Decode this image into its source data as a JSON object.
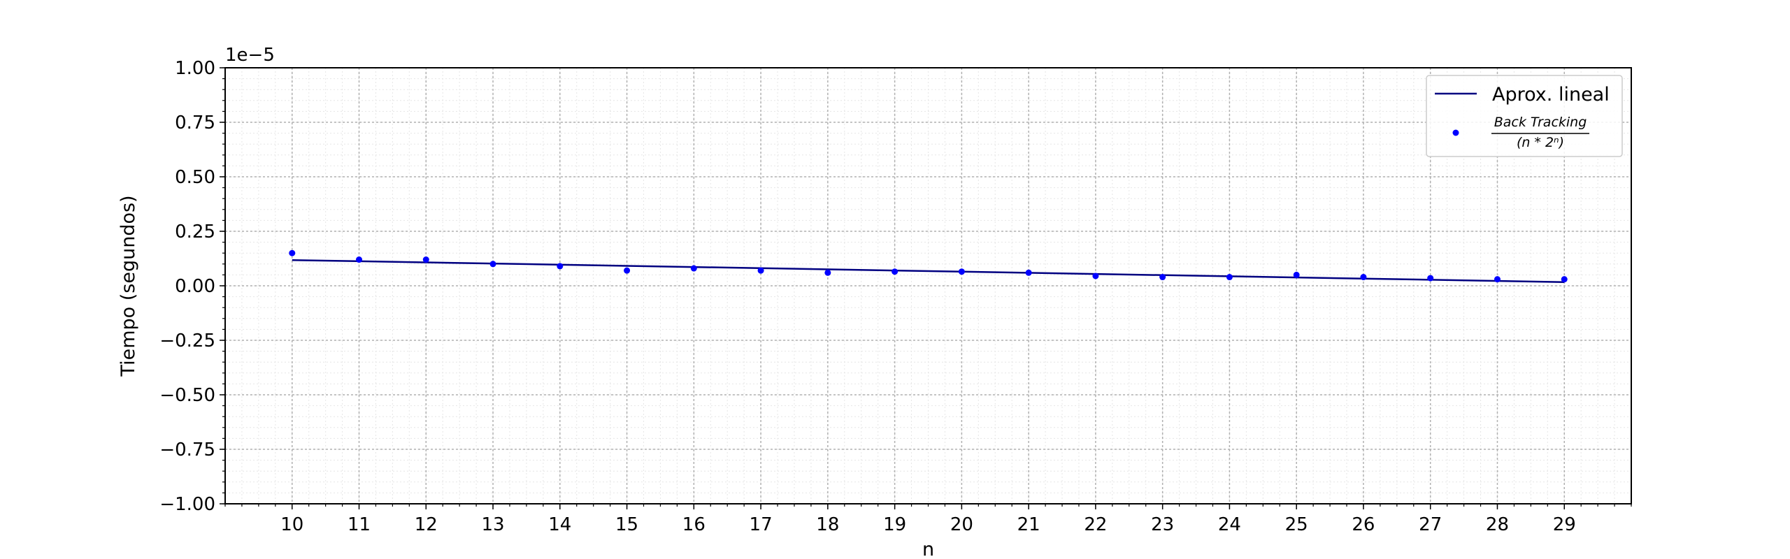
{
  "chart_data": {
    "type": "scatter",
    "xlabel": "n",
    "ylabel": "Tiempo (segundos)",
    "y_offset_label": "1e−5",
    "xlim": [
      9,
      30
    ],
    "ylim": [
      -1.0,
      1.0
    ],
    "x_ticks": [
      10,
      11,
      12,
      13,
      14,
      15,
      16,
      17,
      18,
      19,
      20,
      21,
      22,
      23,
      24,
      25,
      26,
      27,
      28,
      29
    ],
    "y_ticks": [
      -1.0,
      -0.75,
      -0.5,
      -0.25,
      0.0,
      0.25,
      0.5,
      0.75,
      1.0
    ],
    "y_tick_labels": [
      "−1.00",
      "−0.75",
      "−0.50",
      "−0.25",
      "0.00",
      "0.25",
      "0.50",
      "0.75",
      "1.00"
    ],
    "grid": true,
    "minor_grid": true,
    "legend_position": "top-right",
    "series": [
      {
        "name": "Aprox. lineal",
        "kind": "line",
        "color": "#000080",
        "x": [
          10,
          29
        ],
        "y": [
          0.118,
          0.017
        ]
      },
      {
        "name": "Back Tracking / (n*2^n)",
        "legend_numerator": "Back Tracking",
        "legend_denominator": "(n * 2ⁿ)",
        "kind": "scatter",
        "color": "#0000ff",
        "x": [
          10,
          11,
          12,
          13,
          14,
          15,
          16,
          17,
          18,
          19,
          20,
          21,
          22,
          23,
          24,
          25,
          26,
          27,
          28,
          29
        ],
        "y": [
          0.15,
          0.12,
          0.12,
          0.1,
          0.09,
          0.07,
          0.08,
          0.07,
          0.06,
          0.065,
          0.065,
          0.06,
          0.045,
          0.04,
          0.04,
          0.05,
          0.04,
          0.035,
          0.03,
          0.03
        ]
      }
    ]
  }
}
